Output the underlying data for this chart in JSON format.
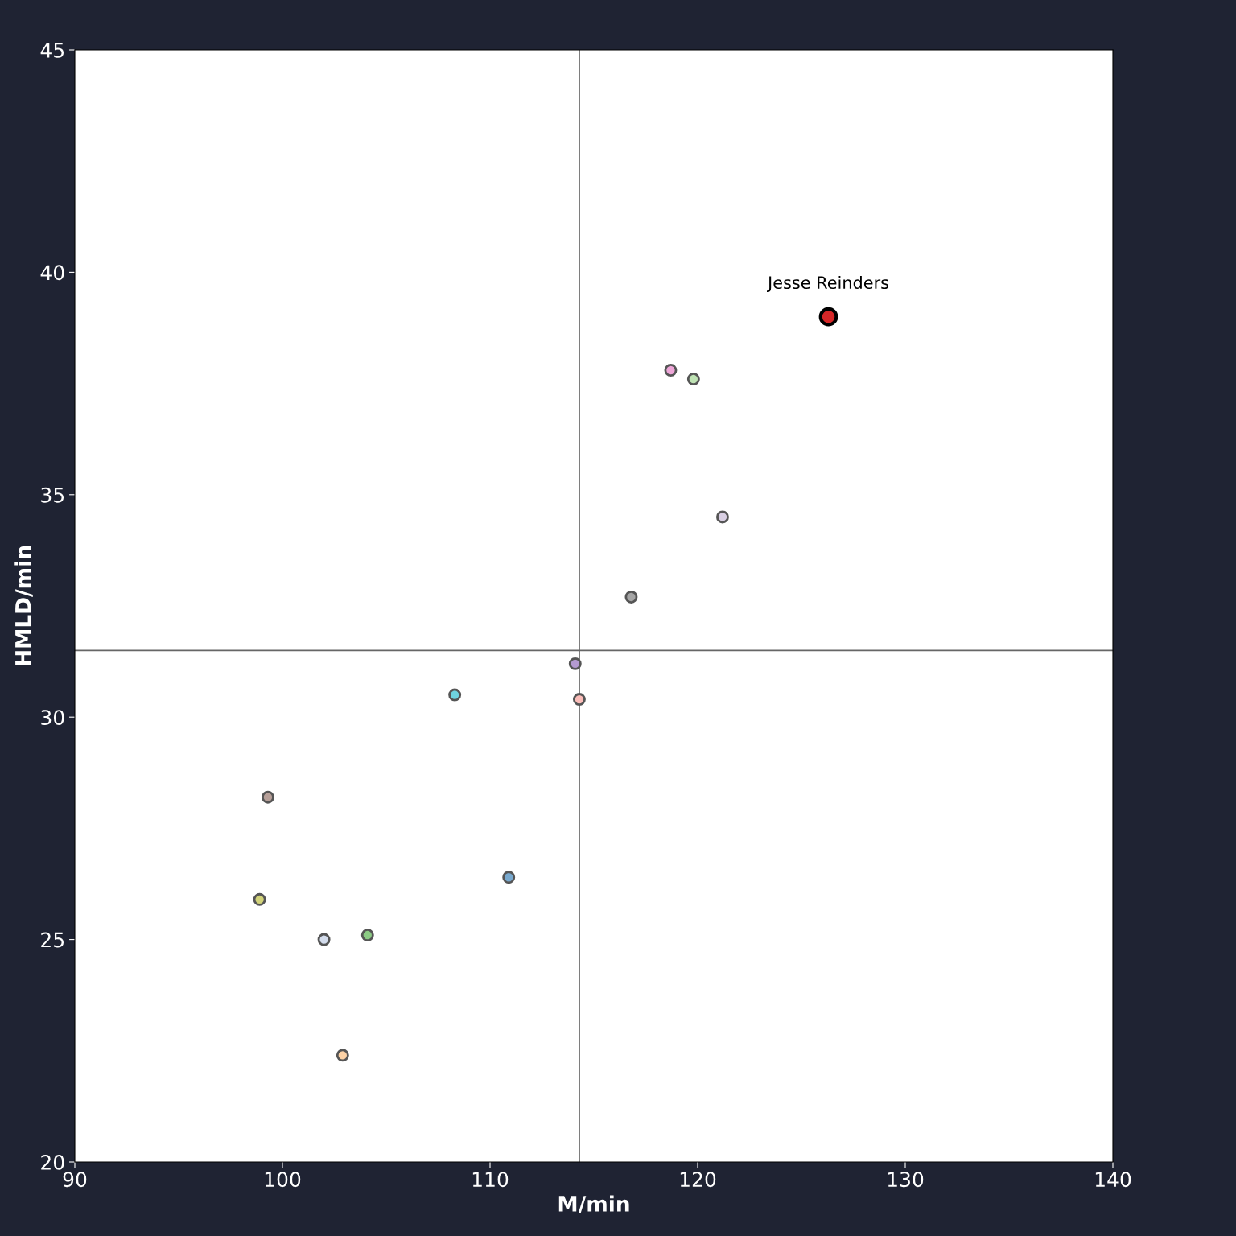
{
  "chart_data": {
    "type": "scatter",
    "xlabel": "M/min",
    "ylabel": "HMLD/min",
    "xlim": [
      90,
      140
    ],
    "xticks": [
      90,
      100,
      110,
      120,
      130,
      140
    ],
    "ylim": [
      20,
      45
    ],
    "yticks": [
      20,
      25,
      30,
      35,
      40,
      45
    ],
    "grid": false,
    "marker": "circle",
    "series": [
      {
        "x": [
          118.7,
          119.8,
          121.2,
          116.8,
          114.1,
          114.3,
          108.3,
          99.3,
          110.9,
          98.9,
          102.0,
          104.1,
          102.9
        ],
        "values": [
          37.8,
          37.6,
          34.5,
          32.7,
          31.2,
          30.4,
          30.5,
          28.2,
          26.4,
          25.9,
          25.0,
          25.1,
          22.4
        ],
        "colors": [
          "#eea6d8",
          "#bfe3b4",
          "#d9cfe3",
          "#a5a5a5",
          "#b49ad0",
          "#fbbdb9",
          "#6fd3df",
          "#b69f98",
          "#78a9cf",
          "#d2d37a",
          "#d3dcec",
          "#8ccb84",
          "#fdd2a6"
        ]
      },
      {
        "x": [
          126.3
        ],
        "values": [
          39.0
        ],
        "colors": [
          "#d62728"
        ]
      }
    ],
    "ref_lines": [
      {
        "axis": "x",
        "value": 114.3,
        "color": "#666666"
      },
      {
        "axis": "y",
        "value": 31.5,
        "color": "#666666"
      }
    ],
    "annotations": [
      {
        "text": "Jesse Reinders",
        "x": 126.3,
        "y": 39.0
      }
    ]
  }
}
